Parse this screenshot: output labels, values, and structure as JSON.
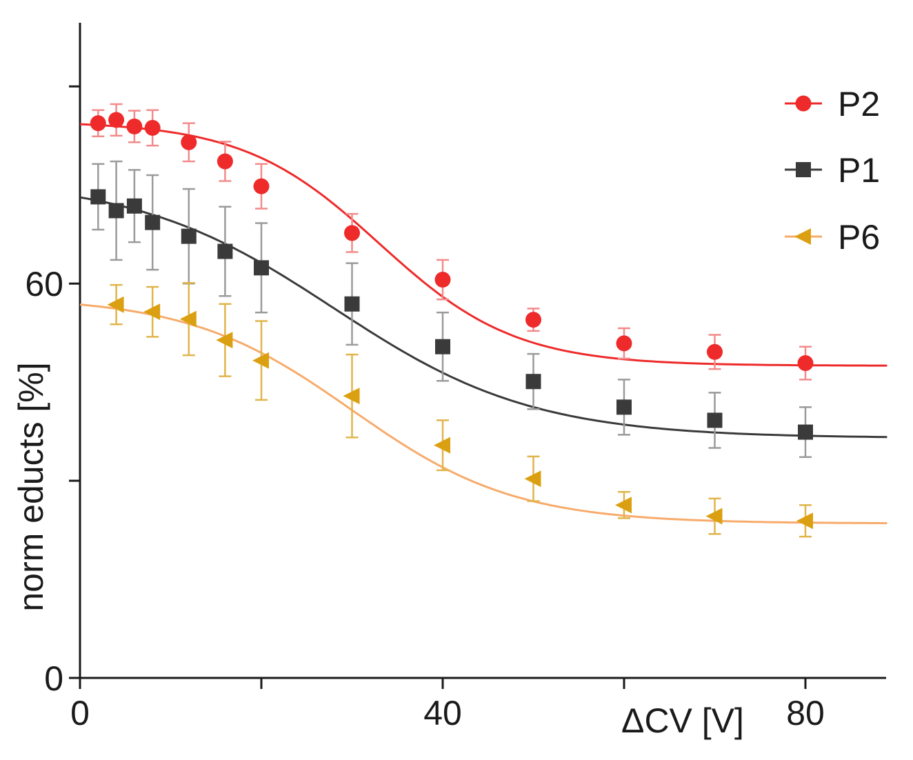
{
  "chart_data": {
    "type": "line",
    "xlabel": "ΔCV [V]",
    "ylabel": "norm educts [%]",
    "xlim": [
      0,
      89
    ],
    "ylim": [
      0,
      90
    ],
    "xticks": [
      0,
      20,
      40,
      60,
      80
    ],
    "xtick_labels": [
      "0",
      "",
      "40",
      "",
      "80"
    ],
    "yticks": [
      0,
      30,
      60,
      90
    ],
    "ytick_labels": [
      "0",
      "",
      "60",
      ""
    ],
    "grid": false,
    "legend_position": "top-right",
    "series": [
      {
        "name": "P2",
        "color": "#ee2a2a",
        "errcolor": "#f28a8a",
        "marker": "circle",
        "x": [
          2,
          4,
          6,
          8,
          12,
          16,
          20,
          30,
          40,
          50,
          60,
          70,
          80
        ],
        "y": [
          84.4,
          84.9,
          83.9,
          83.7,
          81.5,
          78.6,
          74.8,
          67.7,
          60.6,
          54.5,
          50.9,
          49.6,
          47.9
        ],
        "err": [
          2.0,
          2.4,
          2.4,
          2.7,
          2.9,
          3.0,
          3.4,
          2.9,
          3.0,
          1.7,
          2.3,
          2.6,
          2.5
        ],
        "fit": {
          "top": 84.7,
          "bottom": 47.5,
          "x0": 33.0,
          "k": 7.5
        }
      },
      {
        "name": "P1",
        "color": "#3a3a3a",
        "errcolor": "#9a9a9a",
        "marker": "square",
        "x": [
          2,
          4,
          6,
          8,
          12,
          16,
          20,
          30,
          40,
          50,
          60,
          70,
          80
        ],
        "y": [
          73.2,
          71.1,
          71.8,
          69.3,
          67.2,
          64.9,
          62.4,
          56.9,
          50.4,
          45.1,
          41.2,
          39.2,
          37.4
        ],
        "err": [
          5.0,
          7.5,
          5.5,
          7.2,
          7.2,
          6.8,
          6.8,
          6.2,
          5.2,
          4.2,
          4.2,
          4.2,
          3.8
        ],
        "fit": {
          "top": 76.0,
          "bottom": 36.5,
          "x0": 28.0,
          "k": 11.0
        }
      },
      {
        "name": "P6",
        "color": "#dba011",
        "errcolor": "#e0b44a",
        "linecolor": "#f7ab6b",
        "marker": "triangle-left",
        "x": [
          4,
          8,
          12,
          16,
          20,
          30,
          40,
          50,
          60,
          70,
          80
        ],
        "y": [
          56.8,
          55.7,
          54.6,
          51.4,
          48.3,
          42.9,
          35.4,
          30.3,
          26.3,
          24.6,
          23.9
        ],
        "err": [
          3.0,
          3.8,
          5.5,
          5.5,
          6.0,
          6.3,
          3.8,
          3.4,
          2.0,
          2.7,
          2.4
        ],
        "fit": {
          "top": 58.0,
          "bottom": 23.5,
          "x0": 30.0,
          "k": 9.0
        }
      }
    ]
  }
}
